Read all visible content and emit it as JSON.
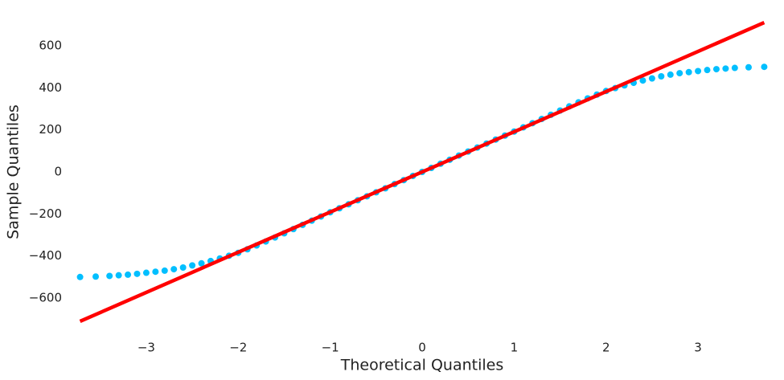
{
  "chart_data": {
    "type": "scatter",
    "xlabel": "Theoretical Quantiles",
    "ylabel": "Sample Quantiles",
    "color": "#00bfff",
    "x": [
      -3.72,
      -3.55,
      -3.4,
      -3.3,
      -3.2,
      -3.1,
      -3.0,
      -2.9,
      -2.8,
      -2.7,
      -2.6,
      -2.5,
      -2.4,
      -2.3,
      -2.2,
      -2.1,
      -2.0,
      -1.9,
      -1.8,
      -1.7,
      -1.6,
      -1.5,
      -1.4,
      -1.3,
      -1.2,
      -1.1,
      -1.0,
      -0.9,
      -0.8,
      -0.7,
      -0.6,
      -0.5,
      -0.4,
      -0.3,
      -0.2,
      -0.1,
      0,
      0.1,
      0.2,
      0.3,
      0.4,
      0.5,
      0.6,
      0.7,
      0.8,
      0.9,
      1.0,
      1.1,
      1.2,
      1.3,
      1.4,
      1.5,
      1.6,
      1.7,
      1.8,
      1.9,
      2.0,
      2.1,
      2.2,
      2.3,
      2.4,
      2.5,
      2.6,
      2.7,
      2.8,
      2.9,
      3.0,
      3.1,
      3.2,
      3.3,
      3.4,
      3.55,
      3.72
    ],
    "values": [
      -500,
      -498,
      -495,
      -492,
      -489,
      -485,
      -480,
      -475,
      -470,
      -463,
      -455,
      -445,
      -435,
      -424,
      -412,
      -399,
      -385,
      -368,
      -350,
      -331,
      -312,
      -292,
      -272,
      -252,
      -232,
      -212,
      -192,
      -173,
      -154,
      -135,
      -116,
      -97,
      -78,
      -58,
      -39,
      -19,
      0,
      19,
      39,
      58,
      78,
      97,
      116,
      135,
      154,
      173,
      192,
      212,
      232,
      252,
      272,
      292,
      312,
      331,
      350,
      368,
      385,
      399,
      412,
      424,
      435,
      445,
      455,
      463,
      470,
      475,
      480,
      485,
      489,
      492,
      495,
      498,
      500
    ],
    "reference_line": {
      "x": [
        -3.72,
        3.72
      ],
      "y": [
        -711,
        711
      ],
      "color": "#ff0000"
    },
    "xlim": [
      -3.9,
      3.9
    ],
    "ylim": [
      -780,
      780
    ],
    "xticks": [
      {
        "value": -3,
        "label": "−3"
      },
      {
        "value": -2,
        "label": "−2"
      },
      {
        "value": -1,
        "label": "−1"
      },
      0,
      1,
      2,
      3
    ],
    "yticks": [
      {
        "value": -600,
        "label": "−600"
      },
      {
        "value": -400,
        "label": "−400"
      },
      {
        "value": -200,
        "label": "−200"
      },
      0,
      200,
      400,
      600
    ]
  }
}
